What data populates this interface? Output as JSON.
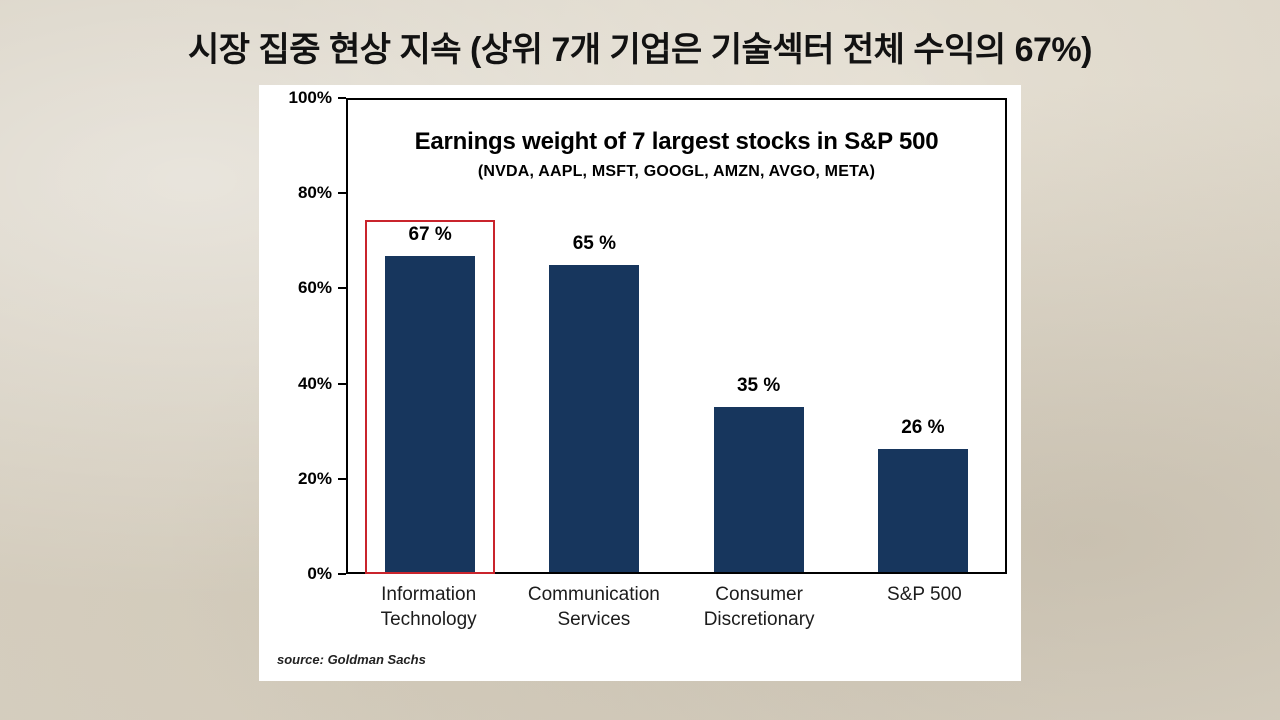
{
  "slide": {
    "title": "시장 집중 현상 지속 (상위 7개 기업은 기술섹터 전체 수익의 67%)"
  },
  "chart_data": {
    "type": "bar",
    "title": "Earnings weight of 7 largest stocks in S&P 500",
    "subtitle": "(NVDA, AAPL, MSFT, GOOGL, AMZN, AVGO, META)",
    "categories": [
      "Information Technology",
      "Communication Services",
      "Consumer Discretionary",
      "S&P 500"
    ],
    "values": [
      67,
      65,
      35,
      26
    ],
    "value_labels": [
      "67 %",
      "65 %",
      "35 %",
      "26 %"
    ],
    "y_ticks": [
      "100%",
      "80%",
      "60%",
      "40%",
      "20%",
      "0%"
    ],
    "ylim": [
      0,
      100
    ],
    "xlabel": "",
    "ylabel": "",
    "grid": false,
    "legend": false,
    "bar_color": "#17365d",
    "highlight": {
      "index": 0,
      "top_percent": 75,
      "color": "#c9242c"
    },
    "source": "source: Goldman Sachs"
  }
}
